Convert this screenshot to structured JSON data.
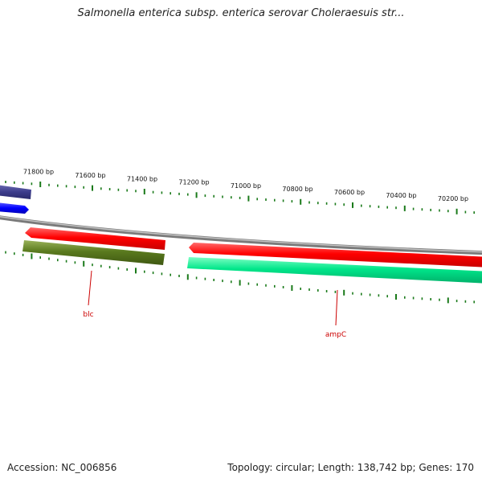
{
  "title": "Salmonella enterica subsp. enterica serovar Choleraesuis str...",
  "footer": {
    "accession": "Accession: NC_006856",
    "summary": "Topology: circular; Length: 138,742 bp; Genes: 170"
  },
  "colors": {
    "backbone": "#8a8a8a",
    "tick": "#1a7a1a",
    "label": "#cc0000",
    "gene_forward": "#ff0000",
    "gene_reverse_dark": "#5a7a1e",
    "gene_reverse_teal": "#00e68a",
    "gene_navy": "#3c3c8c",
    "gene_blue": "#0000ff"
  },
  "scale_labels": [
    "71800 bp",
    "71600 bp",
    "71400 bp",
    "71200 bp",
    "71000 bp",
    "70800 bp",
    "70600 bp",
    "70400 bp",
    "70200 bp"
  ],
  "genes": [
    {
      "name": "blc",
      "strand": "reverse"
    },
    {
      "name": "ampC",
      "strand": "reverse"
    }
  ]
}
